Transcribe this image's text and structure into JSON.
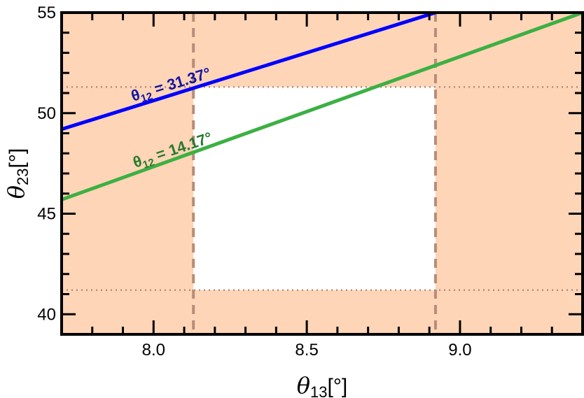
{
  "chart_data": {
    "type": "line",
    "xlim": [
      7.7,
      9.4
    ],
    "ylim": [
      39.0,
      55.0
    ],
    "x_ticks": [
      8.0,
      8.5,
      9.0
    ],
    "x_tick_labels": [
      "8.0",
      "8.5",
      "9.0"
    ],
    "y_ticks": [
      40,
      45,
      50,
      55
    ],
    "y_tick_labels": [
      "40",
      "45",
      "50",
      "55"
    ],
    "xlabel": {
      "symbol": "θ",
      "sub": "13",
      "unit": "[°]"
    },
    "ylabel": {
      "symbol": "θ",
      "sub": "23",
      "unit": "[°]"
    },
    "series": [
      {
        "label": {
          "symbol": "θ",
          "sub": "12",
          "text": " = 31.37°"
        },
        "color": "#0000ff",
        "x": [
          7.7,
          8.92
        ],
        "y": [
          49.2,
          55.0
        ]
      },
      {
        "label": {
          "symbol": "θ",
          "sub": "12",
          "text": " = 14.17°"
        },
        "color": "#3cb043",
        "x": [
          7.7,
          9.4
        ],
        "y": [
          45.7,
          55.0
        ]
      }
    ],
    "allowed_region": {
      "x": [
        8.13,
        8.92
      ],
      "y": [
        41.2,
        51.3
      ]
    },
    "excluded_fill_color": "#fed5b6",
    "boundary_color": "#b88c7a"
  }
}
